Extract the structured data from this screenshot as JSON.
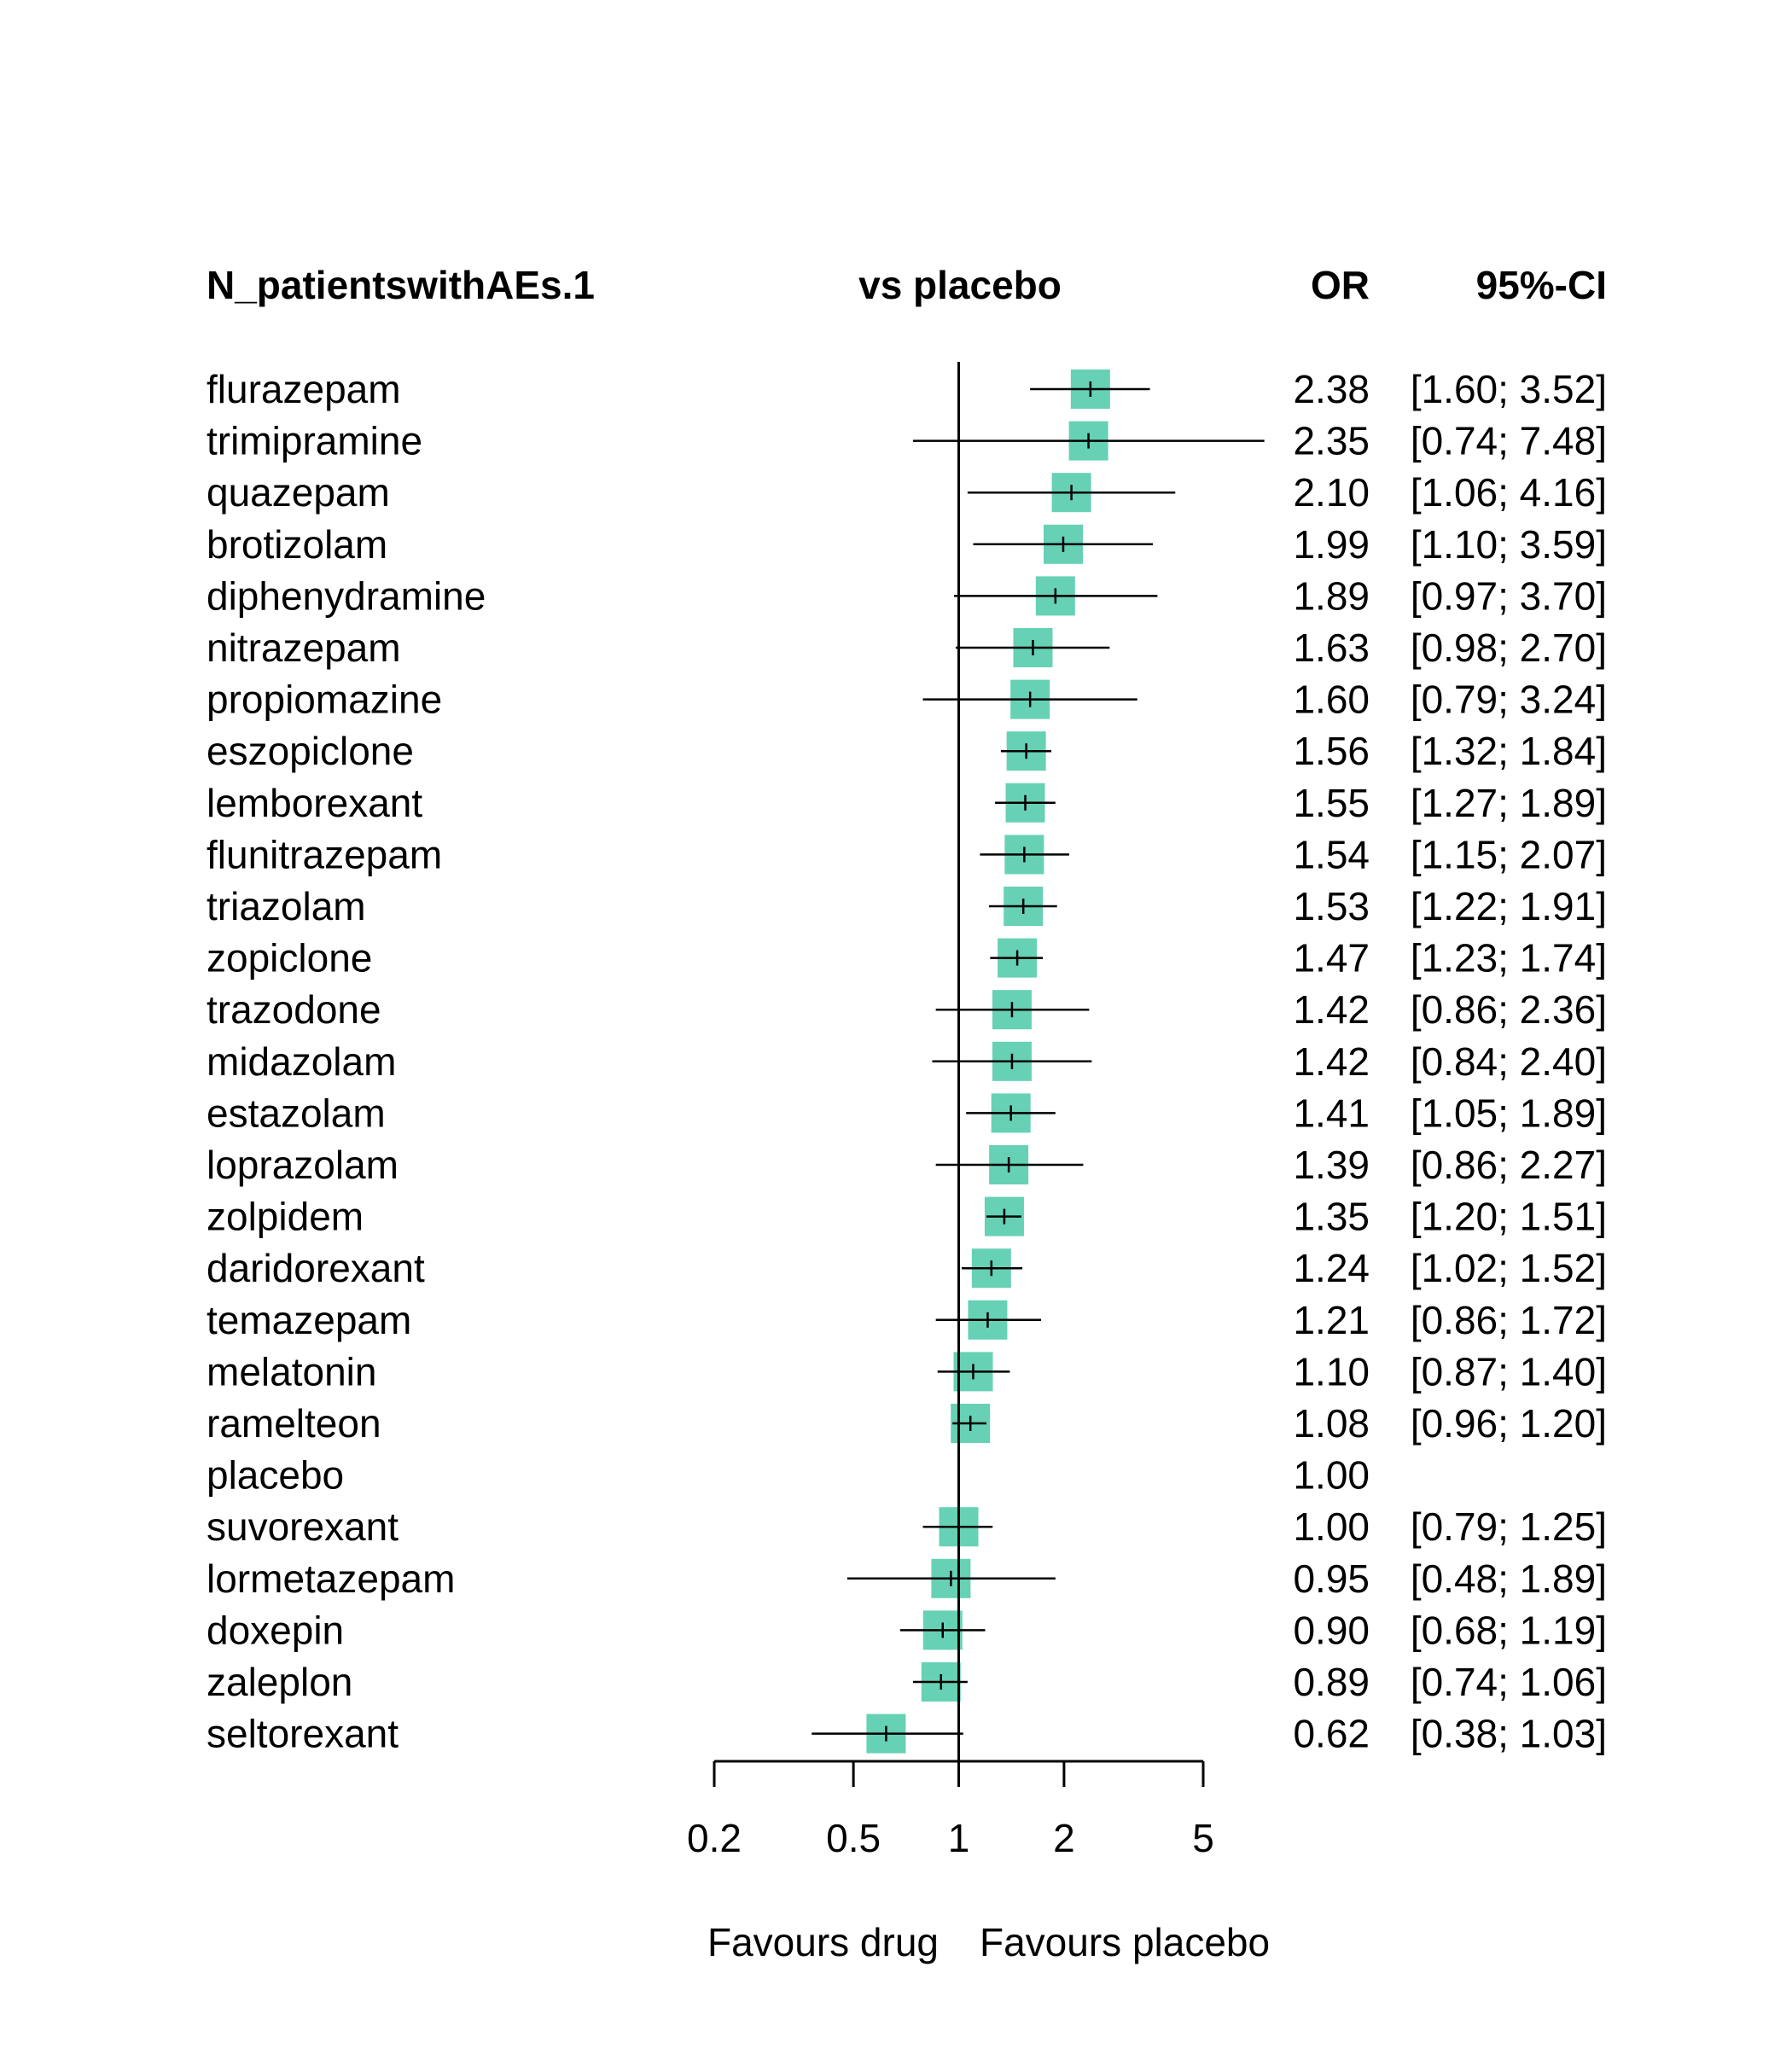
{
  "chart_data": {
    "type": "forest",
    "headers": {
      "left": "N_patientswithAEs.1",
      "middle": "vs placebo",
      "or": "OR",
      "ci": "95%-CI"
    },
    "rows": [
      {
        "name": "flurazepam",
        "or": 2.38,
        "lower": 1.6,
        "upper": 3.52,
        "or_text": "2.38",
        "ci_text": "[1.60; 3.52]"
      },
      {
        "name": "trimipramine",
        "or": 2.35,
        "lower": 0.74,
        "upper": 7.48,
        "or_text": "2.35",
        "ci_text": "[0.74; 7.48]"
      },
      {
        "name": "quazepam",
        "or": 2.1,
        "lower": 1.06,
        "upper": 4.16,
        "or_text": "2.10",
        "ci_text": "[1.06; 4.16]"
      },
      {
        "name": "brotizolam",
        "or": 1.99,
        "lower": 1.1,
        "upper": 3.59,
        "or_text": "1.99",
        "ci_text": "[1.10; 3.59]"
      },
      {
        "name": "diphenydramine",
        "or": 1.89,
        "lower": 0.97,
        "upper": 3.7,
        "or_text": "1.89",
        "ci_text": "[0.97; 3.70]"
      },
      {
        "name": "nitrazepam",
        "or": 1.63,
        "lower": 0.98,
        "upper": 2.7,
        "or_text": "1.63",
        "ci_text": "[0.98; 2.70]"
      },
      {
        "name": "propiomazine",
        "or": 1.6,
        "lower": 0.79,
        "upper": 3.24,
        "or_text": "1.60",
        "ci_text": "[0.79; 3.24]"
      },
      {
        "name": "eszopiclone",
        "or": 1.56,
        "lower": 1.32,
        "upper": 1.84,
        "or_text": "1.56",
        "ci_text": "[1.32; 1.84]"
      },
      {
        "name": "lemborexant",
        "or": 1.55,
        "lower": 1.27,
        "upper": 1.89,
        "or_text": "1.55",
        "ci_text": "[1.27; 1.89]"
      },
      {
        "name": "flunitrazepam",
        "or": 1.54,
        "lower": 1.15,
        "upper": 2.07,
        "or_text": "1.54",
        "ci_text": "[1.15; 2.07]"
      },
      {
        "name": "triazolam",
        "or": 1.53,
        "lower": 1.22,
        "upper": 1.91,
        "or_text": "1.53",
        "ci_text": "[1.22; 1.91]"
      },
      {
        "name": "zopiclone",
        "or": 1.47,
        "lower": 1.23,
        "upper": 1.74,
        "or_text": "1.47",
        "ci_text": "[1.23; 1.74]"
      },
      {
        "name": "trazodone",
        "or": 1.42,
        "lower": 0.86,
        "upper": 2.36,
        "or_text": "1.42",
        "ci_text": "[0.86; 2.36]"
      },
      {
        "name": "midazolam",
        "or": 1.42,
        "lower": 0.84,
        "upper": 2.4,
        "or_text": "1.42",
        "ci_text": "[0.84; 2.40]"
      },
      {
        "name": "estazolam",
        "or": 1.41,
        "lower": 1.05,
        "upper": 1.89,
        "or_text": "1.41",
        "ci_text": "[1.05; 1.89]"
      },
      {
        "name": "loprazolam",
        "or": 1.39,
        "lower": 0.86,
        "upper": 2.27,
        "or_text": "1.39",
        "ci_text": "[0.86; 2.27]"
      },
      {
        "name": "zolpidem",
        "or": 1.35,
        "lower": 1.2,
        "upper": 1.51,
        "or_text": "1.35",
        "ci_text": "[1.20; 1.51]"
      },
      {
        "name": "daridorexant",
        "or": 1.24,
        "lower": 1.02,
        "upper": 1.52,
        "or_text": "1.24",
        "ci_text": "[1.02; 1.52]"
      },
      {
        "name": "temazepam",
        "or": 1.21,
        "lower": 0.86,
        "upper": 1.72,
        "or_text": "1.21",
        "ci_text": "[0.86; 1.72]"
      },
      {
        "name": "melatonin",
        "or": 1.1,
        "lower": 0.87,
        "upper": 1.4,
        "or_text": "1.10",
        "ci_text": "[0.87; 1.40]"
      },
      {
        "name": "ramelteon",
        "or": 1.08,
        "lower": 0.96,
        "upper": 1.2,
        "or_text": "1.08",
        "ci_text": "[0.96; 1.20]"
      },
      {
        "name": "placebo",
        "or": 1.0,
        "lower": null,
        "upper": null,
        "or_text": "1.00",
        "ci_text": ""
      },
      {
        "name": "suvorexant",
        "or": 1.0,
        "lower": 0.79,
        "upper": 1.25,
        "or_text": "1.00",
        "ci_text": "[0.79; 1.25]"
      },
      {
        "name": "lormetazepam",
        "or": 0.95,
        "lower": 0.48,
        "upper": 1.89,
        "or_text": "0.95",
        "ci_text": "[0.48; 1.89]"
      },
      {
        "name": "doxepin",
        "or": 0.9,
        "lower": 0.68,
        "upper": 1.19,
        "or_text": "0.90",
        "ci_text": "[0.68; 1.19]"
      },
      {
        "name": "zaleplon",
        "or": 0.89,
        "lower": 0.74,
        "upper": 1.06,
        "or_text": "0.89",
        "ci_text": "[0.74; 1.06]"
      },
      {
        "name": "seltorexant",
        "or": 0.62,
        "lower": 0.38,
        "upper": 1.03,
        "or_text": "0.62",
        "ci_text": "[0.38; 1.03]"
      }
    ],
    "x_scale": "log",
    "xlim": [
      0.2,
      5
    ],
    "x_ticks": [
      0.2,
      0.5,
      1,
      2,
      5
    ],
    "x_tick_labels": [
      "0.2",
      "0.5",
      "1",
      "2",
      "5"
    ],
    "reference_line": 1,
    "footer_left": "Favours drug",
    "footer_right": "Favours placebo",
    "colors": {
      "box": "#66d1b5",
      "line": "#000000"
    }
  }
}
